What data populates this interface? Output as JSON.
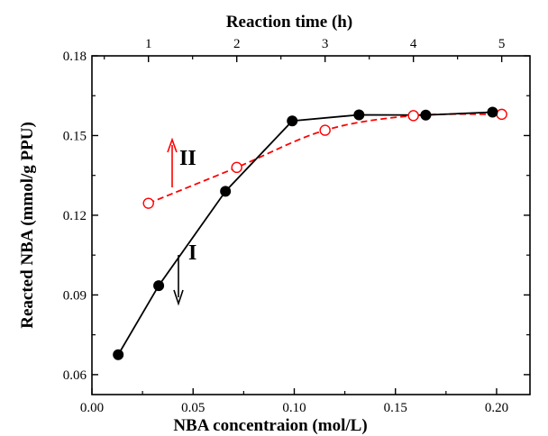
{
  "chart_data": {
    "type": "scatter",
    "xlabel": "NBA concentraion (mol/L)",
    "x2label": "Reaction time (h)",
    "ylabel": "Reacted NBA (mmol/g PPU)",
    "xlim": [
      0.0,
      0.2165
    ],
    "ylim": [
      0.0525,
      0.18
    ],
    "x2lim": [
      0.36,
      5.32
    ],
    "xticks": [
      "0.00",
      "0.05",
      "0.10",
      "0.15",
      "0.20"
    ],
    "x2ticks": [
      "1",
      "2",
      "3",
      "4",
      "5"
    ],
    "yticks": [
      "0.06",
      "0.09",
      "0.12",
      "0.15",
      "0.18"
    ],
    "grid": false,
    "series": [
      {
        "name": "I",
        "axis": "bottom",
        "style": "solid line, filled black circles",
        "color": "#000000",
        "x": [
          0.013,
          0.033,
          0.066,
          0.099,
          0.132,
          0.165,
          0.198
        ],
        "y": [
          0.0675,
          0.0935,
          0.129,
          0.1555,
          0.1578,
          0.1577,
          0.1588
        ]
      },
      {
        "name": "II",
        "axis": "top",
        "style": "dashed line, open red circles",
        "color": "#ff0000",
        "x": [
          1.0,
          2.0,
          3.0,
          4.0,
          5.0
        ],
        "y": [
          0.1245,
          0.138,
          0.152,
          0.1575,
          0.158
        ]
      }
    ],
    "annotations": [
      {
        "text": "I",
        "direction": "down",
        "color": "#000000"
      },
      {
        "text": "II",
        "direction": "up",
        "color": "#ff0000"
      }
    ]
  }
}
